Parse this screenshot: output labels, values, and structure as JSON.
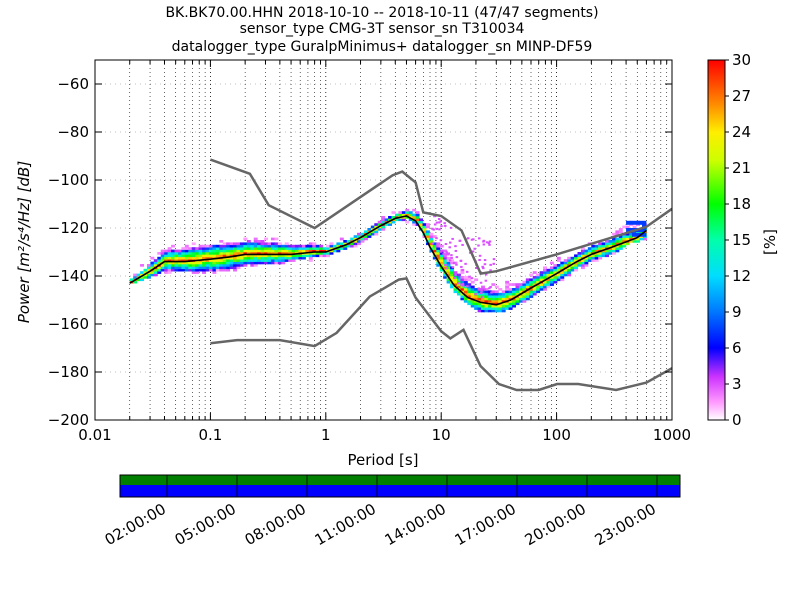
{
  "chart_data": {
    "type": "heatmap",
    "title_lines": [
      "BK.BK70.00.HHN   2018-10-10 -- 2018-10-11  (47/47 segments)",
      "sensor_type CMG-3T sensor_sn T310034",
      "datalogger_type GuralpMinimus+ datalogger_sn MINP-DF59"
    ],
    "xlabel": "Period [s]",
    "ylabel": "Power [m²/s⁴/Hz] [dB]",
    "x_scale": "log",
    "xlim": [
      0.01,
      1000
    ],
    "ylim": [
      -200,
      -50
    ],
    "x_ticks": [
      {
        "value": 0.01,
        "label": "0.01"
      },
      {
        "value": 0.1,
        "label": "0.1"
      },
      {
        "value": 1,
        "label": "1"
      },
      {
        "value": 10,
        "label": "10"
      },
      {
        "value": 100,
        "label": "100"
      },
      {
        "value": 1000,
        "label": "1000"
      }
    ],
    "y_ticks": [
      {
        "value": -60,
        "label": "−60"
      },
      {
        "value": -80,
        "label": "−80"
      },
      {
        "value": -100,
        "label": "−100"
      },
      {
        "value": -120,
        "label": "−120"
      },
      {
        "value": -140,
        "label": "−140"
      },
      {
        "value": -160,
        "label": "−160"
      },
      {
        "value": -180,
        "label": "−180"
      },
      {
        "value": -200,
        "label": "−200"
      }
    ],
    "grid": "dotted vertical at minor log periods",
    "colorbar": {
      "label": "[%]",
      "range": [
        0,
        30
      ],
      "ticks": [
        {
          "value": 0,
          "label": "0"
        },
        {
          "value": 3,
          "label": "3"
        },
        {
          "value": 6,
          "label": "6"
        },
        {
          "value": 9,
          "label": "9"
        },
        {
          "value": 12,
          "label": "12"
        },
        {
          "value": 15,
          "label": "15"
        },
        {
          "value": 18,
          "label": "18"
        },
        {
          "value": 21,
          "label": "21"
        },
        {
          "value": 24,
          "label": "24"
        },
        {
          "value": 27,
          "label": "27"
        },
        {
          "value": 30,
          "label": "30"
        }
      ]
    },
    "high_noise_model": [
      [
        0.1,
        -91.5
      ],
      [
        0.22,
        -97.4
      ],
      [
        0.32,
        -110.5
      ],
      [
        0.8,
        -120
      ],
      [
        3.8,
        -98
      ],
      [
        4.6,
        -96.5
      ],
      [
        6,
        -101
      ],
      [
        7,
        -113.5
      ],
      [
        10,
        -115
      ],
      [
        15,
        -121
      ],
      [
        22,
        -139
      ],
      [
        30,
        -138
      ],
      [
        100,
        -131
      ],
      [
        300,
        -124
      ],
      [
        600,
        -119.5
      ],
      [
        1000,
        -112
      ]
    ],
    "low_noise_model": [
      [
        0.1,
        -168
      ],
      [
        0.17,
        -166.7
      ],
      [
        0.4,
        -166.7
      ],
      [
        0.8,
        -169.2
      ],
      [
        1.24,
        -163.7
      ],
      [
        2.4,
        -148.6
      ],
      [
        4.3,
        -141.5
      ],
      [
        5,
        -141
      ],
      [
        6,
        -149
      ],
      [
        10,
        -163
      ],
      [
        12,
        -166
      ],
      [
        15.6,
        -162.4
      ],
      [
        21.9,
        -177.5
      ],
      [
        31.6,
        -185
      ],
      [
        45,
        -187.5
      ],
      [
        70,
        -187.5
      ],
      [
        101,
        -185
      ],
      [
        154,
        -185
      ],
      [
        328,
        -187.5
      ],
      [
        600,
        -184.4
      ],
      [
        1000,
        -178.4
      ]
    ],
    "median_curve": [
      [
        0.02,
        -143
      ],
      [
        0.03,
        -138
      ],
      [
        0.04,
        -134
      ],
      [
        0.06,
        -134
      ],
      [
        0.1,
        -133
      ],
      [
        0.15,
        -132
      ],
      [
        0.2,
        -131
      ],
      [
        0.3,
        -131
      ],
      [
        0.5,
        -131
      ],
      [
        0.8,
        -130
      ],
      [
        1,
        -130
      ],
      [
        1.5,
        -127
      ],
      [
        2,
        -124
      ],
      [
        3,
        -119
      ],
      [
        4,
        -116
      ],
      [
        5,
        -115
      ],
      [
        6,
        -117
      ],
      [
        7,
        -122
      ],
      [
        8,
        -128
      ],
      [
        10,
        -136
      ],
      [
        13,
        -144
      ],
      [
        17,
        -149
      ],
      [
        22,
        -151
      ],
      [
        30,
        -152
      ],
      [
        40,
        -150
      ],
      [
        60,
        -145
      ],
      [
        100,
        -139
      ],
      [
        150,
        -134
      ],
      [
        200,
        -131
      ],
      [
        300,
        -128
      ],
      [
        500,
        -124
      ],
      [
        600,
        -121
      ]
    ],
    "density_band": [
      [
        0.02,
        -143,
        -140
      ],
      [
        0.03,
        -140,
        -133
      ],
      [
        0.05,
        -138,
        -128
      ],
      [
        0.1,
        -139,
        -127
      ],
      [
        0.2,
        -136,
        -125
      ],
      [
        0.3,
        -135,
        -125
      ],
      [
        0.5,
        -134,
        -127
      ],
      [
        0.8,
        -133,
        -128
      ],
      [
        1,
        -132,
        -128
      ],
      [
        1.5,
        -129,
        -125
      ],
      [
        2,
        -126,
        -122
      ],
      [
        3,
        -121,
        -117
      ],
      [
        4,
        -118,
        -114
      ],
      [
        5,
        -117,
        -113
      ],
      [
        6,
        -119,
        -114
      ],
      [
        7,
        -124,
        -118
      ],
      [
        8,
        -130,
        -122
      ],
      [
        10,
        -139,
        -128
      ],
      [
        13,
        -147,
        -136
      ],
      [
        17,
        -152,
        -141
      ],
      [
        22,
        -155,
        -144
      ],
      [
        30,
        -155,
        -145
      ],
      [
        40,
        -153,
        -143
      ],
      [
        60,
        -148,
        -139
      ],
      [
        100,
        -142,
        -134
      ],
      [
        150,
        -137,
        -130
      ],
      [
        200,
        -134,
        -127
      ],
      [
        300,
        -131,
        -124
      ],
      [
        400,
        -126,
        -118
      ],
      [
        600,
        -124,
        -118
      ]
    ],
    "time_axis": {
      "labels": [
        "02:00:00",
        "05:00:00",
        "08:00:00",
        "11:00:00",
        "14:00:00",
        "17:00:00",
        "20:00:00",
        "23:00:00"
      ],
      "coverage_colors": {
        "top": "#007f00",
        "bottom": "#0000ff"
      }
    }
  }
}
